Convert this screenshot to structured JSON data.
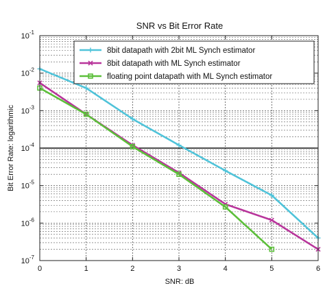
{
  "chart_data": {
    "type": "line",
    "title": "SNR vs Bit Error Rate",
    "xlabel": "SNR: dB",
    "ylabel": "Bit Error Rate: logarithmic",
    "yscale": "log",
    "xlim": [
      0,
      6
    ],
    "ylim": [
      1e-07,
      0.1
    ],
    "grid": true,
    "legend_position": "top-right",
    "x_ticks": [
      "0",
      "1",
      "2",
      "3",
      "4",
      "5",
      "6"
    ],
    "y_ticks": [
      {
        "value": 1e-07,
        "base": "10",
        "exp": "-7"
      },
      {
        "value": 1e-06,
        "base": "10",
        "exp": "-6"
      },
      {
        "value": 1e-05,
        "base": "10",
        "exp": "-5"
      },
      {
        "value": 0.0001,
        "base": "10",
        "exp": "-4"
      },
      {
        "value": 0.001,
        "base": "10",
        "exp": "-3"
      },
      {
        "value": 0.01,
        "base": "10",
        "exp": "-2"
      },
      {
        "value": 0.1,
        "base": "10",
        "exp": "-1"
      }
    ],
    "highlight_lines": [
      0.0001
    ],
    "series": [
      {
        "name": "8bit datapath with 2bit ML Synch estimator",
        "color": "#4fc3d9",
        "marker": "plus",
        "x": [
          0,
          1,
          2,
          3,
          4,
          5,
          6
        ],
        "y": [
          0.013,
          0.004,
          0.0006,
          0.00012,
          2.5e-05,
          5.5e-06,
          4e-07
        ]
      },
      {
        "name": "8bit datapath with ML Synch estimator",
        "color": "#b8359b",
        "marker": "x",
        "x": [
          0,
          1,
          2,
          3,
          4,
          5,
          6
        ],
        "y": [
          0.0055,
          0.0008,
          0.00012,
          2.2e-05,
          3.2e-06,
          1.2e-06,
          2e-07
        ]
      },
      {
        "name": "floating point datapath with ML Synch estimator",
        "color": "#5cbf3a",
        "marker": "square",
        "x": [
          0,
          1,
          2,
          3,
          4,
          5
        ],
        "y": [
          0.004,
          0.0008,
          0.00011,
          2e-05,
          2.7e-06,
          2e-07
        ]
      }
    ]
  }
}
